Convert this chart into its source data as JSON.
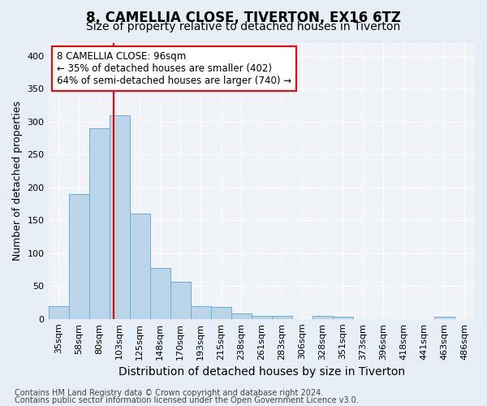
{
  "title": "8, CAMELLIA CLOSE, TIVERTON, EX16 6TZ",
  "subtitle": "Size of property relative to detached houses in Tiverton",
  "xlabel": "Distribution of detached houses by size in Tiverton",
  "ylabel": "Number of detached properties",
  "bar_labels": [
    "35sqm",
    "58sqm",
    "80sqm",
    "103sqm",
    "125sqm",
    "148sqm",
    "170sqm",
    "193sqm",
    "215sqm",
    "238sqm",
    "261sqm",
    "283sqm",
    "306sqm",
    "328sqm",
    "351sqm",
    "373sqm",
    "396sqm",
    "418sqm",
    "441sqm",
    "463sqm",
    "486sqm"
  ],
  "bar_values": [
    20,
    190,
    290,
    310,
    160,
    78,
    57,
    20,
    18,
    8,
    5,
    5,
    0,
    5,
    4,
    0,
    0,
    0,
    0,
    3,
    0
  ],
  "bar_color": "#bad4ea",
  "bar_edge_color": "#6baed6",
  "red_line_x": 2.73,
  "annotation_line1": "8 CAMELLIA CLOSE: 96sqm",
  "annotation_line2": "← 35% of detached houses are smaller (402)",
  "annotation_line3": "64% of semi-detached houses are larger (740) →",
  "ylim": [
    0,
    420
  ],
  "yticks": [
    0,
    50,
    100,
    150,
    200,
    250,
    300,
    350,
    400
  ],
  "footer_line1": "Contains HM Land Registry data © Crown copyright and database right 2024.",
  "footer_line2": "Contains public sector information licensed under the Open Government Licence v3.0.",
  "bg_color": "#e8eef5",
  "plot_bg_color": "#f0f4f9",
  "grid_color": "#ffffff",
  "title_fontsize": 12,
  "subtitle_fontsize": 10,
  "ylabel_fontsize": 9,
  "xlabel_fontsize": 10,
  "tick_fontsize": 8,
  "annot_fontsize": 8.5,
  "footer_fontsize": 7
}
